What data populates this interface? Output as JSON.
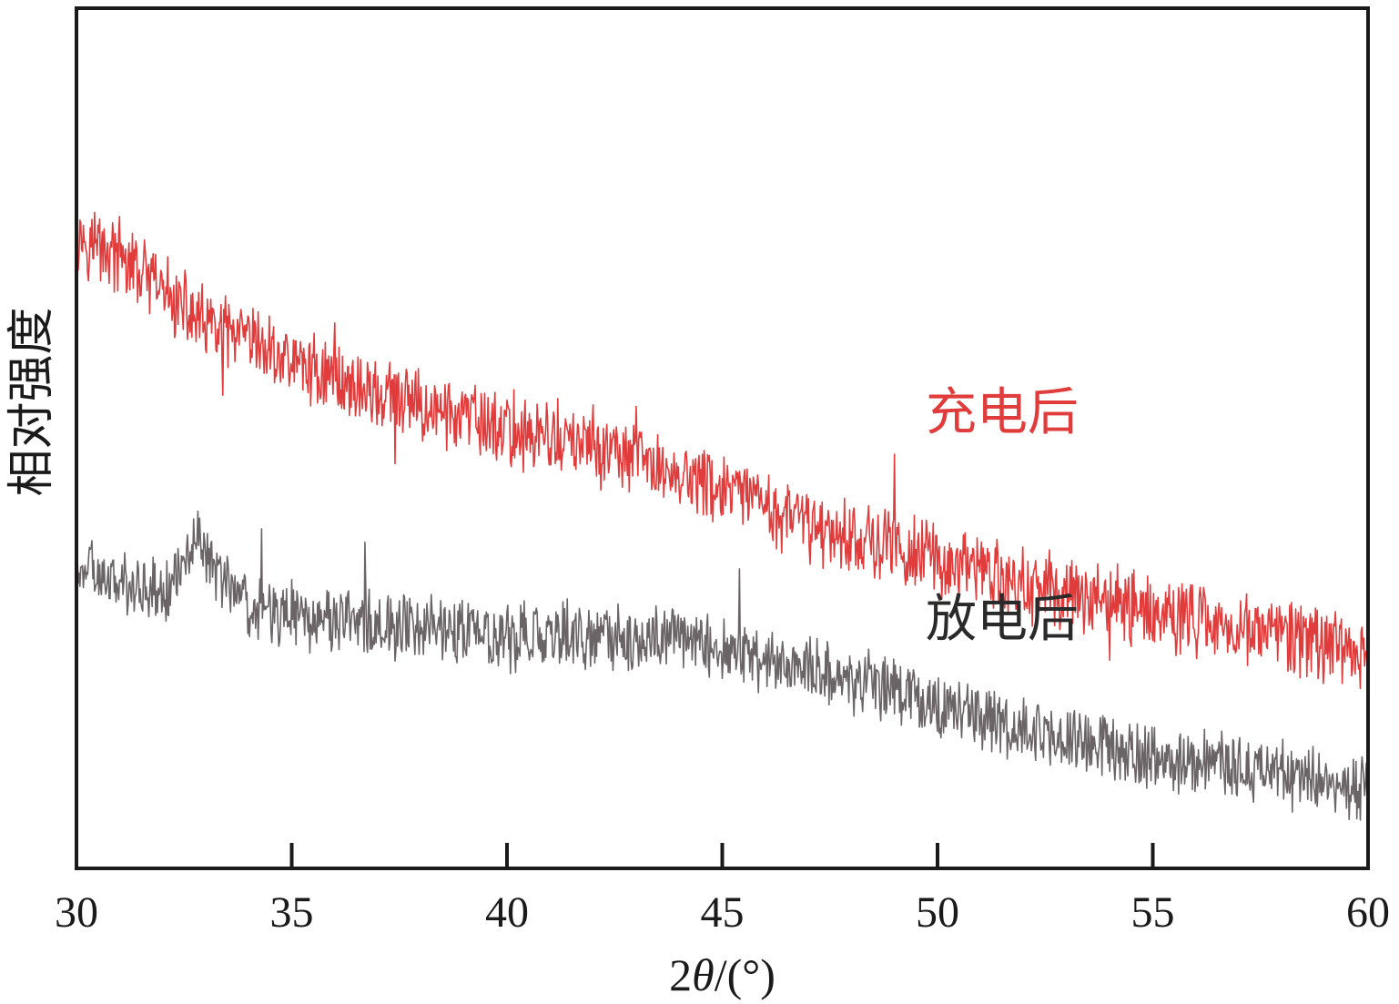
{
  "chart_data": {
    "type": "line",
    "xlabel_prefix": "2",
    "xlabel_theta": "θ",
    "xlabel_suffix": "/(°)",
    "ylabel": "相对强度",
    "xlim": [
      30,
      60
    ],
    "xticks": [
      30,
      35,
      40,
      45,
      50,
      55,
      60
    ],
    "xtick_labels": [
      "30",
      "35",
      "40",
      "45",
      "50",
      "55",
      "60"
    ],
    "y_axis_ticks": "none",
    "ylim": [
      0,
      100
    ],
    "grid": false,
    "series": [
      {
        "name": "充电后",
        "color": "#e03c3c",
        "trend_x": [
          30,
          31,
          32,
          33,
          35,
          37,
          40,
          42,
          45,
          47,
          50,
          52,
          55,
          58,
          60
        ],
        "trend_y": [
          74,
          71,
          67,
          63,
          59,
          55,
          51,
          49,
          44,
          40,
          36,
          33,
          30,
          27,
          25
        ],
        "noise_amplitude": 4.5,
        "spikes": [
          [
            33.4,
            -8
          ],
          [
            36,
            9
          ],
          [
            37.4,
            -9
          ],
          [
            43,
            9
          ],
          [
            49,
            7
          ],
          [
            54,
            -5
          ]
        ]
      },
      {
        "name": "放电后",
        "color": "#6b6466",
        "trend_x": [
          30,
          31,
          32,
          32.5,
          32.8,
          33.2,
          34,
          36,
          40,
          42,
          44,
          45,
          48,
          50,
          52,
          55,
          58,
          60
        ],
        "trend_y": [
          35,
          33,
          32,
          35,
          39,
          35,
          30,
          29,
          27,
          27,
          27,
          25,
          22,
          19,
          16,
          13,
          11,
          9
        ],
        "noise_amplitude": 4,
        "spikes": [
          [
            34.3,
            9
          ],
          [
            36.7,
            8
          ],
          [
            37.4,
            -7
          ],
          [
            45.4,
            8
          ]
        ]
      }
    ],
    "annotations": [
      {
        "text": "充电后",
        "x": 51.5,
        "y": 51
      },
      {
        "text": "放电后",
        "x": 51.5,
        "y": 27
      }
    ]
  }
}
